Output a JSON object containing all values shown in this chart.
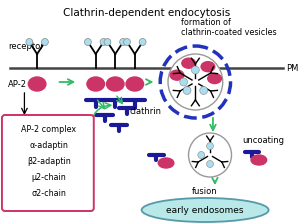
{
  "title": "Clathrin-dependent endocytosis",
  "bg_color": "#ffffff",
  "pm_label": "PM",
  "receptor_label": "receptor",
  "ap2_label": "AP-2",
  "clathrin_label": "clathrin",
  "formation_label": "formation of\nclathrin-coated vesicles",
  "uncoating_label": "uncoating",
  "fusion_label": "fusion",
  "early_endo_label": "early endosomes",
  "ap2_complex_lines": [
    "AP-2 complex",
    "α-adaptin",
    "β2-adaptin",
    "μ2-chain",
    "σ2-chain"
  ],
  "arrow_color": "#33bb66",
  "membrane_color": "#444444",
  "receptor_color": "#cc3366",
  "clathrin_color": "#1a1a99",
  "vesicle_border_color": "#2233bb",
  "box_border_color": "#cc3366",
  "endo_fill_color": "#b8e8e8",
  "endo_border_color": "#5599aa",
  "ligand_color": "#aaddee",
  "ligand_ec": "#888888"
}
